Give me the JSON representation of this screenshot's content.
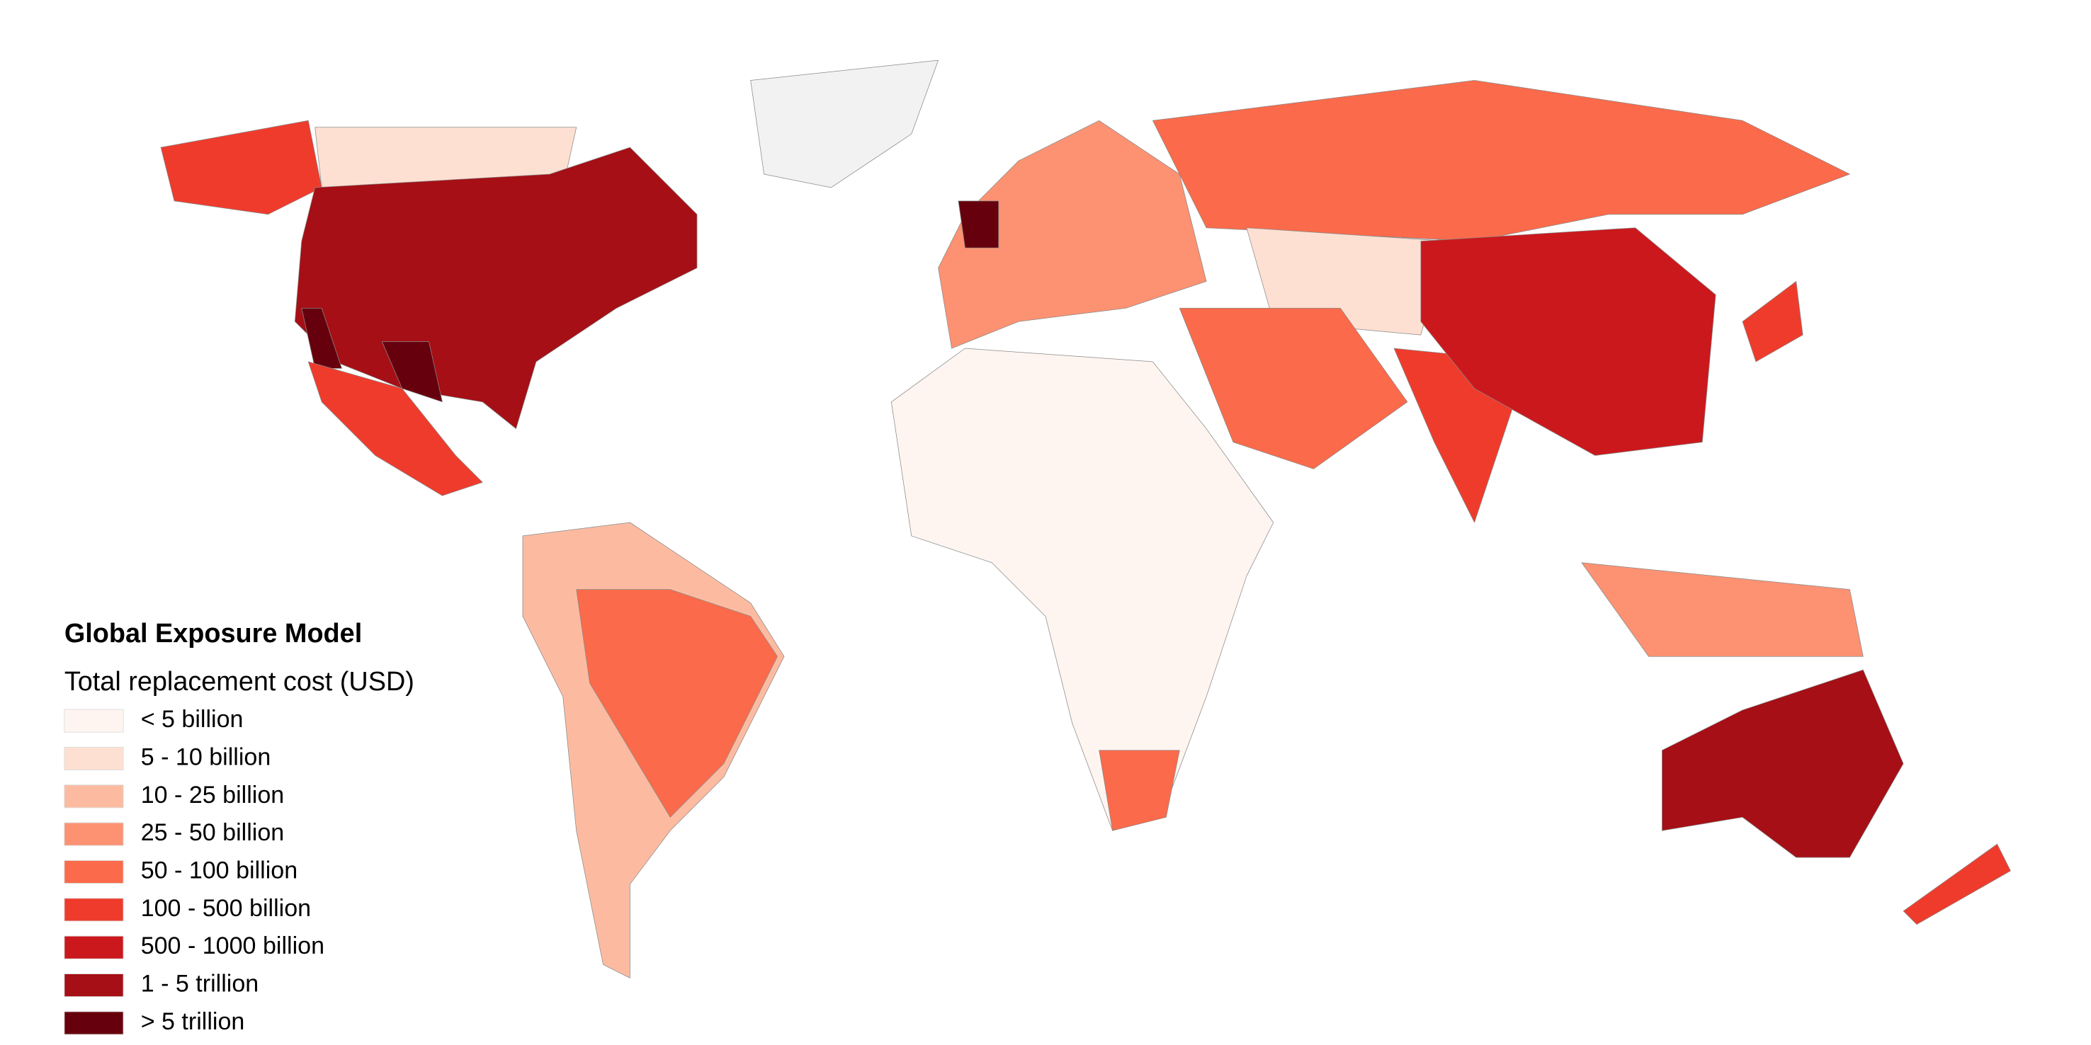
{
  "legend": {
    "title": "Global Exposure Model",
    "subtitle": "Total replacement cost (USD)",
    "items": [
      {
        "label": "< 5 billion",
        "color": "#fff5f0"
      },
      {
        "label": "5 - 10 billion",
        "color": "#fee0d2"
      },
      {
        "label": "10 - 25 billion",
        "color": "#fcbba1"
      },
      {
        "label": "25 - 50 billion",
        "color": "#fc9272"
      },
      {
        "label": "50 - 100 billion",
        "color": "#fb6a4a"
      },
      {
        "label": "100 - 500 billion",
        "color": "#ef3b2c"
      },
      {
        "label": "500 - 1000 billion",
        "color": "#cb181d"
      },
      {
        "label": "1 - 5 trillion",
        "color": "#a50f15"
      },
      {
        "label": "> 5 trillion",
        "color": "#67000d"
      }
    ]
  }
}
